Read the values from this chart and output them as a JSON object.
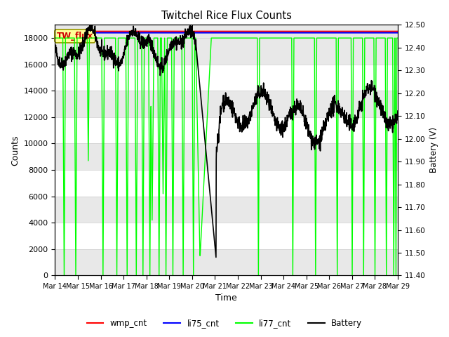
{
  "title": "Twitchel Rice Flux Counts",
  "xlabel": "Time",
  "ylabel_left": "Counts",
  "ylabel_right": "Battery (V)",
  "ylim_left": [
    0,
    19000
  ],
  "ylim_right": [
    11.4,
    12.5
  ],
  "yticks_left": [
    0,
    2000,
    4000,
    6000,
    8000,
    10000,
    12000,
    14000,
    16000,
    18000
  ],
  "yticks_right": [
    11.4,
    11.5,
    11.6,
    11.7,
    11.8,
    11.9,
    12.0,
    12.1,
    12.2,
    12.3,
    12.4,
    12.5
  ],
  "xtick_labels": [
    "Mar 14",
    "Mar 15",
    "Mar 16",
    "Mar 17",
    "Mar 18",
    "Mar 19",
    "Mar 20",
    "Mar 21",
    "Mar 22",
    "Mar 23",
    "Mar 24",
    "Mar 25",
    "Mar 26",
    "Mar 27",
    "Mar 28",
    "Mar 29"
  ],
  "wmp_cnt_color": "#ff0000",
  "li75_cnt_color": "#0000ff",
  "li77_cnt_color": "#00ff00",
  "battery_color": "#000000",
  "bg_color": "#ffffff",
  "band_color": "#e8e8e8",
  "annotation_label": "TW_flux",
  "figsize": [
    6.4,
    4.8
  ],
  "dpi": 100
}
